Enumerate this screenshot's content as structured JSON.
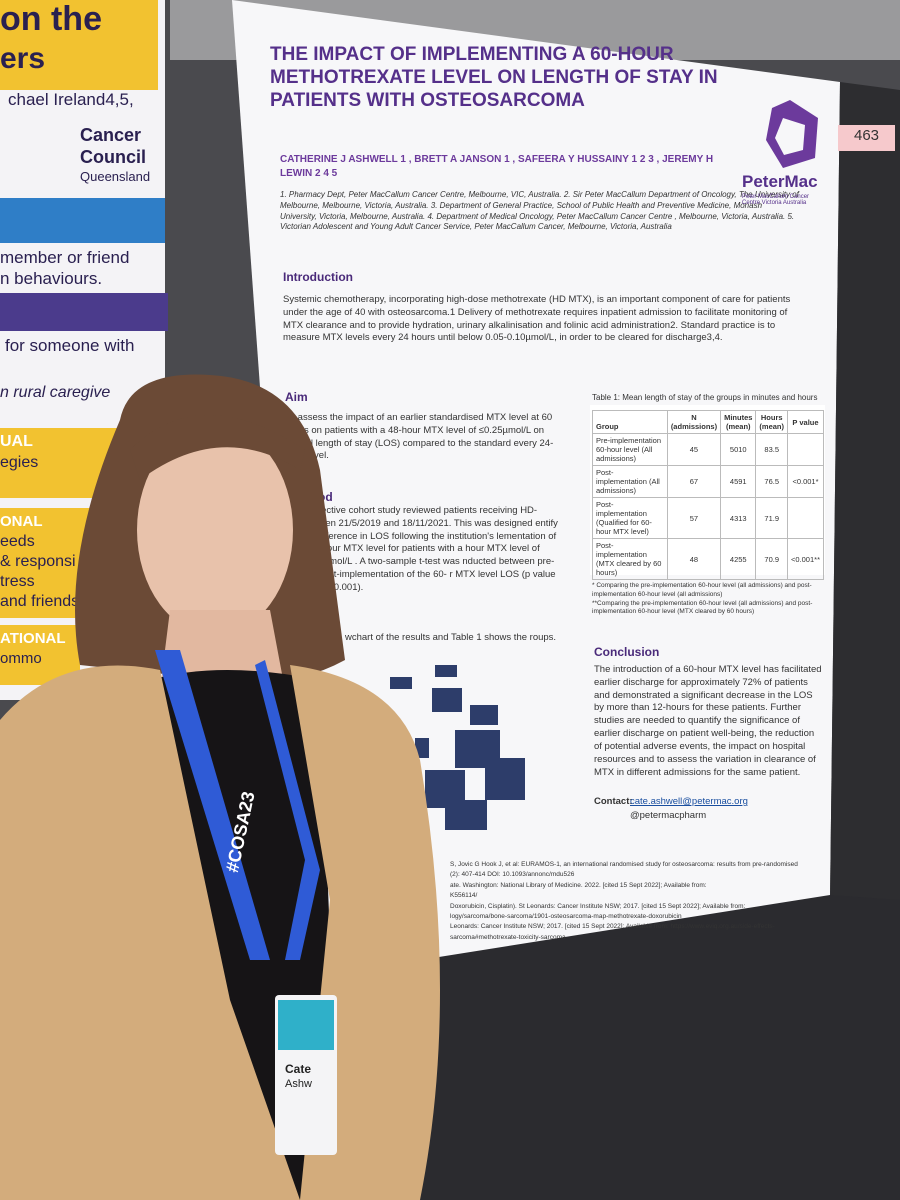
{
  "left_poster": {
    "lines": [
      "on the",
      "ers",
      "chael Ireland4,5,",
      "Cancer",
      "Council",
      "Queensland",
      "member or friend",
      "n behaviours.",
      "for someone with",
      "n rural caregive",
      "UAL",
      "egies",
      "ONAL",
      "eeds",
      "& responsi",
      "tress",
      "and friends",
      "ATIONAL",
      "ommo"
    ]
  },
  "poster_number": "463",
  "poster": {
    "title": "THE IMPACT OF IMPLEMENTING A 60-HOUR METHOTREXATE LEVEL ON LENGTH OF STAY IN PATIENTS WITH OSTEOSARCOMA",
    "authors": "CATHERINE J ASHWELL 1 , BRETT A JANSON 1 , SAFEERA Y HUSSAINY 1 2 3 , JEREMY H LEWIN 2 4 5",
    "affiliations": "1. Pharmacy Dept, Peter MacCallum Cancer Centre, Melbourne, VIC, Australia. 2. Sir Peter MacCallum Department of Oncology, The University of Melbourne, Melbourne, Victoria, Australia. 3. Department of General Practice, School of Public Health and Preventive Medicine, Monash University, Victoria, Melbourne, Australia. 4. Department of Medical Oncology, Peter MacCallum Cancer Centre , Melbourne, Victoria, Australia. 5. Victorian Adolescent and Young Adult Cancer Service, Peter MacCallum Cancer, Melbourne, Victoria, Australia",
    "logo": {
      "name": "PeterMac",
      "subtitle": "Peter MacCallum Cancer Centre Victoria Australia"
    },
    "introduction": {
      "heading": "Introduction",
      "text": "Systemic chemotherapy, incorporating high-dose methotrexate (HD MTX), is an important component of care for patients under the age of 40 with osteosarcoma.1 Delivery of methotrexate requires inpatient admission to facilitate monitoring of MTX clearance and to provide hydration, urinary alkalinisation and folinic acid administration2. Standard practice is to measure MTX levels every 24 hours until below 0.05-0.10µmol/L, in order to be cleared for discharge3,4."
    },
    "aim": {
      "heading": "Aim",
      "text": "To assess the impact of an earlier standardised MTX level at 60 hours on patients with a 48-hour MTX level of ≤0.25µmol/L on overall length of stay (LOS) compared to the standard every 24-hour level."
    },
    "method": {
      "heading": "ethod",
      "text": "trospective cohort study reviewed patients receiving HD- between 21/5/2019 and 18/11/2021. This was designed entify the difference in LOS following the institution's lementation of a 60-hour MTX level for patients with a hour MTX level of ≤0.25µmol/L . A two-sample t-test was nducted between pre- and post-implementation of the 60- r MTX level LOS (p value set at ≤ 0.001)."
    },
    "results_fragment": "wchart of the results and Table 1 shows the roups.",
    "table": {
      "caption": "Table 1: Mean length of stay of the groups in minutes and hours",
      "headers": [
        "Group",
        "N (admissions)",
        "Minutes (mean)",
        "Hours (mean)",
        "P value"
      ],
      "rows": [
        {
          "group": "Pre-implementation 60-hour level (All admissions)",
          "n": 45,
          "minutes": 5010,
          "hours": 83.5
        },
        {
          "group": "Post-implementation (All admissions)",
          "n": 67,
          "minutes": 4591,
          "hours": 76.5,
          "p": "<0.001*"
        },
        {
          "group": "Post-implementation (Qualified for 60-hour MTX level)",
          "n": 57,
          "minutes": 4313,
          "hours": 71.9
        },
        {
          "group": "Post-implementation (MTX cleared by 60 hours)",
          "n": 48,
          "minutes": 4255,
          "hours": 70.9,
          "p": "<0.001**"
        }
      ],
      "footnotes": [
        "* Comparing the pre-implementation 60-hour level (all admissions) and post-implementation 60-hour level (all admissions)",
        "**Comparing the pre-implementation 60-hour level (all admissions) and post-implementation 60-hour level (MTX cleared by 60 hours)"
      ]
    },
    "conclusion": {
      "heading": "Conclusion",
      "text": "The introduction of a 60-hour MTX level has facilitated earlier discharge for approximately 72% of patients and demonstrated a significant decrease in the LOS by more than 12-hours for these patients. Further studies are needed to quantify the significance of earlier discharge on patient well-being, the reduction of potential adverse events, the impact on hospital resources and to assess the variation in clearance of MTX in different admissions for the same patient."
    },
    "contact": {
      "label": "Contact:",
      "email": "cate.ashwell@petermac.org",
      "twitter": "@petermacpharm"
    },
    "references": [
      "S, Jovic G Hook J, et al: EURAMOS-1, an international randomised study for osteosarcoma: results from pre-randomised",
      "(2): 407-414 DOI: 10.1093/annonc/mdu526",
      "ate. Washington: National Library of Medicine. 2022. [cited 15 Sept 2022]; Available from:",
      "K556114/",
      "Doxorubicin, Cisplatin). St Leonards: Cancer Institute NSW; 2017. [cited 15 Sept 2022]; Available from:",
      "logy/sarcoma/bone-sarcoma/1901-osteosarcoma-map-methotrexate-doxorubicin",
      "Leonards: Cancer Institute NSW; 2017. [cited 15 Sept 2022]; Available from: https://www.eviq.org.au/side-effects-",
      "sarcoma#methotrexate-toxicity-sarcoma"
    ]
  },
  "badge": {
    "lanyard": "#COSA23",
    "name": "Cate",
    "surname": "Ashw"
  }
}
